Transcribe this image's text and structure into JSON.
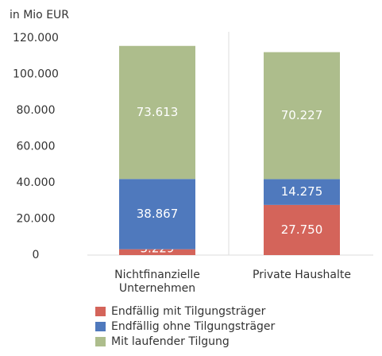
{
  "chart_data": {
    "type": "stacked_bar",
    "y_axis_label": "in Mio EUR",
    "categories": [
      "Nichtfinanzielle\nUnternehmen",
      "Private Haushalte"
    ],
    "series": [
      {
        "name": "Endfällig mit Tilgungsträger",
        "color": "#d4645a",
        "values": [
          3229,
          27750
        ],
        "value_labels": [
          "3.229",
          "27.750"
        ]
      },
      {
        "name": "Endfällig ohne Tilgungsträger",
        "color": "#4f79bd",
        "values": [
          38867,
          14275
        ],
        "value_labels": [
          "38.867",
          "14.275"
        ]
      },
      {
        "name": "Mit laufender Tilgung",
        "color": "#adbd8c",
        "values": [
          73613,
          70227
        ],
        "value_labels": [
          "73.613",
          "70.227"
        ]
      }
    ],
    "ylim": [
      0,
      120000
    ],
    "yticks": [
      0,
      {
        "value": 20000,
        "label": "20.000"
      },
      {
        "value": 40000,
        "label": "40.000"
      },
      {
        "value": 60000,
        "label": "60.000"
      },
      {
        "value": 80000,
        "label": "80.000"
      },
      {
        "value": 100000,
        "label": "100.000"
      },
      {
        "value": 120000,
        "label": "120.000"
      }
    ],
    "legend": "bottom-left"
  }
}
